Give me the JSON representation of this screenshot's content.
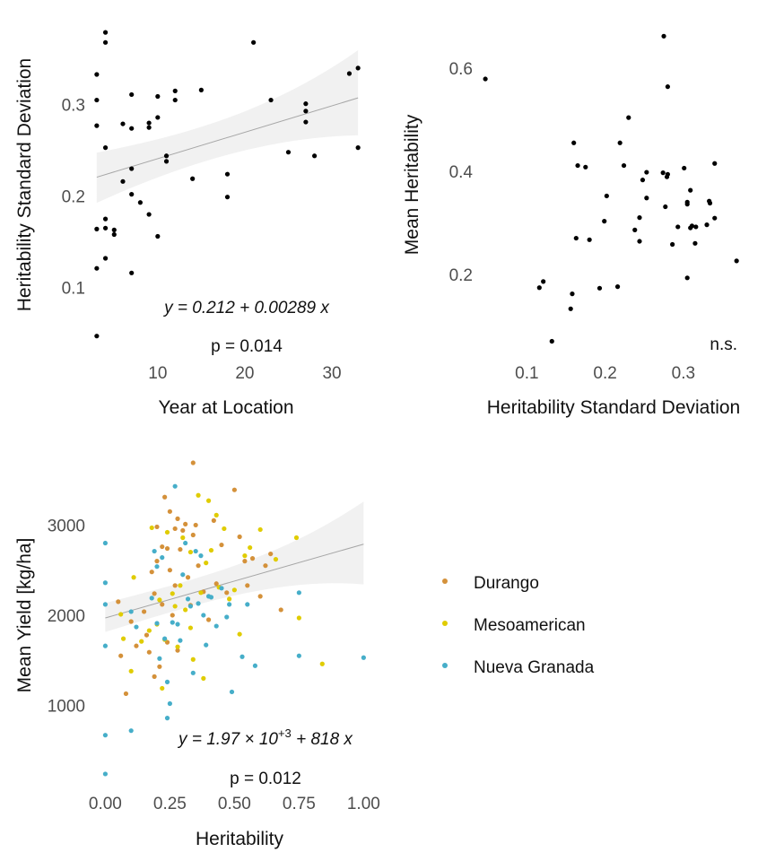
{
  "colors": {
    "point": "#000000",
    "band": "#ebebeb",
    "fit": "#a6a6a6",
    "Durango": "#d4913a",
    "Mesoamerican": "#e0cc00",
    "Nueva Granada": "#46aec9"
  },
  "chart_data": [
    {
      "id": "panel1",
      "type": "scatter",
      "xlabel": "Year  at Location",
      "ylabel": "Heritability Standard Deviation",
      "xlim": [
        2.5,
        33.5
      ],
      "ylim": [
        0.03,
        0.385
      ],
      "xticks": [
        10,
        20,
        30
      ],
      "xtick_labels": [
        "10",
        "20",
        "30"
      ],
      "yticks": [
        0.1,
        0.2,
        0.3
      ],
      "ytick_labels": [
        "0.1",
        "0.2",
        "0.3"
      ],
      "grid": false,
      "fit": {
        "intercept": 0.212,
        "slope": 0.00289,
        "ci_low": [
          0.19,
          0.27
        ],
        "ci_high": [
          0.25,
          0.355
        ]
      },
      "equation": "y = 0.212 + 0.00289 x",
      "p_value": "p = 0.014",
      "points": [
        [
          3,
          0.333
        ],
        [
          3,
          0.305
        ],
        [
          3,
          0.277
        ],
        [
          3,
          0.164
        ],
        [
          3,
          0.121
        ],
        [
          3,
          0.047
        ],
        [
          4,
          0.379
        ],
        [
          4,
          0.368
        ],
        [
          4,
          0.253
        ],
        [
          4,
          0.175
        ],
        [
          4,
          0.165
        ],
        [
          4,
          0.132
        ],
        [
          5,
          0.163
        ],
        [
          5,
          0.158
        ],
        [
          6,
          0.279
        ],
        [
          6,
          0.216
        ],
        [
          7,
          0.311
        ],
        [
          7,
          0.274
        ],
        [
          7,
          0.23
        ],
        [
          7,
          0.202
        ],
        [
          7,
          0.116
        ],
        [
          8,
          0.193
        ],
        [
          9,
          0.28
        ],
        [
          9,
          0.275
        ],
        [
          9,
          0.18
        ],
        [
          10,
          0.309
        ],
        [
          10,
          0.286
        ],
        [
          10,
          0.156
        ],
        [
          11,
          0.244
        ],
        [
          11,
          0.238
        ],
        [
          12,
          0.315
        ],
        [
          12,
          0.305
        ],
        [
          14,
          0.219
        ],
        [
          15,
          0.316
        ],
        [
          18,
          0.224
        ],
        [
          18,
          0.199
        ],
        [
          21,
          0.368
        ],
        [
          23,
          0.305
        ],
        [
          25,
          0.248
        ],
        [
          27,
          0.301
        ],
        [
          27,
          0.293
        ],
        [
          27,
          0.281
        ],
        [
          28,
          0.244
        ],
        [
          32,
          0.334
        ],
        [
          33,
          0.34
        ],
        [
          33,
          0.253
        ]
      ]
    },
    {
      "id": "panel2",
      "type": "scatter",
      "xlabel": "Heritability Standard Deviation",
      "ylabel": "Mean Heritability",
      "xlim": [
        0.04,
        0.385
      ],
      "ylim": [
        0.05,
        0.68
      ],
      "xticks": [
        0.1,
        0.2,
        0.3
      ],
      "xtick_labels": [
        "0.1",
        "0.2",
        "0.3"
      ],
      "yticks": [
        0.2,
        0.4,
        0.6
      ],
      "ytick_labels": [
        "0.2",
        "0.4",
        "0.6"
      ],
      "grid": false,
      "annotation": "n.s.",
      "points": [
        [
          0.047,
          0.579
        ],
        [
          0.116,
          0.174
        ],
        [
          0.121,
          0.186
        ],
        [
          0.132,
          0.07
        ],
        [
          0.156,
          0.133
        ],
        [
          0.158,
          0.162
        ],
        [
          0.16,
          0.455
        ],
        [
          0.163,
          0.27
        ],
        [
          0.165,
          0.411
        ],
        [
          0.175,
          0.408
        ],
        [
          0.18,
          0.267
        ],
        [
          0.193,
          0.173
        ],
        [
          0.199,
          0.303
        ],
        [
          0.202,
          0.352
        ],
        [
          0.216,
          0.176
        ],
        [
          0.219,
          0.455
        ],
        [
          0.224,
          0.411
        ],
        [
          0.23,
          0.504
        ],
        [
          0.238,
          0.286
        ],
        [
          0.244,
          0.31
        ],
        [
          0.244,
          0.264
        ],
        [
          0.248,
          0.383
        ],
        [
          0.253,
          0.348
        ],
        [
          0.253,
          0.398
        ],
        [
          0.274,
          0.397
        ],
        [
          0.275,
          0.662
        ],
        [
          0.277,
          0.331
        ],
        [
          0.279,
          0.389
        ],
        [
          0.28,
          0.394
        ],
        [
          0.28,
          0.564
        ],
        [
          0.286,
          0.258
        ],
        [
          0.293,
          0.292
        ],
        [
          0.301,
          0.406
        ],
        [
          0.305,
          0.34
        ],
        [
          0.305,
          0.336
        ],
        [
          0.305,
          0.193
        ],
        [
          0.309,
          0.363
        ],
        [
          0.309,
          0.29
        ],
        [
          0.311,
          0.294
        ],
        [
          0.315,
          0.26
        ],
        [
          0.316,
          0.292
        ],
        [
          0.33,
          0.296
        ],
        [
          0.333,
          0.342
        ],
        [
          0.334,
          0.338
        ],
        [
          0.34,
          0.415
        ],
        [
          0.34,
          0.309
        ],
        [
          0.368,
          0.226
        ]
      ]
    },
    {
      "id": "panel3",
      "type": "scatter",
      "xlabel": "Heritability",
      "ylabel": "Mean Yield [kg/ha]",
      "xlim": [
        -0.05,
        1.03
      ],
      "ylim": [
        150,
        3750
      ],
      "xticks": [
        0,
        0.25,
        0.5,
        0.75,
        1
      ],
      "xtick_labels": [
        "0.00",
        "0.25",
        "0.50",
        "0.75",
        "1.00"
      ],
      "yticks": [
        1000,
        2000,
        3000
      ],
      "ytick_labels": [
        "1000",
        "2000",
        "3000"
      ],
      "grid": false,
      "fit": {
        "intercept": 1970,
        "slope": 818,
        "ci_low": [
          1800,
          2380
        ],
        "ci_high": [
          2150,
          3220
        ]
      },
      "equation": "y = 1.97 × 10^+3 + 818 x",
      "eq_parts": {
        "pre": "y = 1.97 × 10",
        "sup": "+3",
        "post": " + 818 x"
      },
      "p_value": "p = 0.012",
      "legend": {
        "position": "right",
        "entries": [
          "Durango",
          "Mesoamerican",
          "Nueva Granada"
        ]
      },
      "series": [
        {
          "name": "Durango",
          "points": [
            [
              0.05,
              2150
            ],
            [
              0.06,
              1550
            ],
            [
              0.08,
              1130
            ],
            [
              0.1,
              1930
            ],
            [
              0.12,
              1660
            ],
            [
              0.15,
              2040
            ],
            [
              0.16,
              1780
            ],
            [
              0.17,
              1590
            ],
            [
              0.18,
              2480
            ],
            [
              0.19,
              2240
            ],
            [
              0.19,
              1320
            ],
            [
              0.2,
              2980
            ],
            [
              0.2,
              2600
            ],
            [
              0.21,
              1430
            ],
            [
              0.22,
              2760
            ],
            [
              0.22,
              2120
            ],
            [
              0.23,
              3310
            ],
            [
              0.24,
              2740
            ],
            [
              0.24,
              1700
            ],
            [
              0.25,
              3150
            ],
            [
              0.25,
              2500
            ],
            [
              0.26,
              2000
            ],
            [
              0.27,
              2960
            ],
            [
              0.27,
              2330
            ],
            [
              0.28,
              3070
            ],
            [
              0.28,
              1610
            ],
            [
              0.29,
              2730
            ],
            [
              0.3,
              2940
            ],
            [
              0.31,
              3010
            ],
            [
              0.32,
              2420
            ],
            [
              0.33,
              2110
            ],
            [
              0.34,
              3690
            ],
            [
              0.34,
              2890
            ],
            [
              0.35,
              3000
            ],
            [
              0.36,
              2550
            ],
            [
              0.38,
              2260
            ],
            [
              0.4,
              1950
            ],
            [
              0.42,
              3050
            ],
            [
              0.43,
              2350
            ],
            [
              0.45,
              2780
            ],
            [
              0.47,
              2250
            ],
            [
              0.5,
              3390
            ],
            [
              0.52,
              2870
            ],
            [
              0.54,
              2600
            ],
            [
              0.55,
              2330
            ],
            [
              0.57,
              2630
            ],
            [
              0.6,
              2210
            ],
            [
              0.62,
              2550
            ],
            [
              0.64,
              2680
            ],
            [
              0.68,
              2060
            ]
          ]
        },
        {
          "name": "Mesoamerican",
          "points": [
            [
              0.06,
              2010
            ],
            [
              0.07,
              1740
            ],
            [
              0.1,
              1380
            ],
            [
              0.11,
              2420
            ],
            [
              0.14,
              1710
            ],
            [
              0.17,
              1830
            ],
            [
              0.18,
              2970
            ],
            [
              0.2,
              1900
            ],
            [
              0.21,
              2170
            ],
            [
              0.22,
              1190
            ],
            [
              0.23,
              1730
            ],
            [
              0.24,
              2920
            ],
            [
              0.26,
              2240
            ],
            [
              0.27,
              2100
            ],
            [
              0.28,
              1650
            ],
            [
              0.29,
              2330
            ],
            [
              0.3,
              2860
            ],
            [
              0.31,
              2060
            ],
            [
              0.33,
              2700
            ],
            [
              0.33,
              1860
            ],
            [
              0.34,
              1510
            ],
            [
              0.36,
              3330
            ],
            [
              0.37,
              2250
            ],
            [
              0.38,
              1300
            ],
            [
              0.39,
              2580
            ],
            [
              0.4,
              3270
            ],
            [
              0.41,
              2720
            ],
            [
              0.43,
              3110
            ],
            [
              0.44,
              2310
            ],
            [
              0.46,
              2960
            ],
            [
              0.48,
              2180
            ],
            [
              0.5,
              2280
            ],
            [
              0.52,
              1790
            ],
            [
              0.54,
              2660
            ],
            [
              0.56,
              2750
            ],
            [
              0.6,
              2950
            ],
            [
              0.66,
              2620
            ],
            [
              0.74,
              2860
            ],
            [
              0.75,
              1970
            ],
            [
              0.84,
              1460
            ]
          ]
        },
        {
          "name": "Nueva Granada",
          "points": [
            [
              0.0,
              2800
            ],
            [
              0.0,
              2360
            ],
            [
              0.0,
              2120
            ],
            [
              0.0,
              1660
            ],
            [
              0.0,
              670
            ],
            [
              0.0,
              240
            ],
            [
              0.1,
              2040
            ],
            [
              0.1,
              720
            ],
            [
              0.12,
              1870
            ],
            [
              0.18,
              2190
            ],
            [
              0.19,
              2710
            ],
            [
              0.2,
              2540
            ],
            [
              0.2,
              1910
            ],
            [
              0.21,
              1520
            ],
            [
              0.22,
              2640
            ],
            [
              0.23,
              1740
            ],
            [
              0.24,
              1260
            ],
            [
              0.24,
              860
            ],
            [
              0.25,
              1020
            ],
            [
              0.26,
              1920
            ],
            [
              0.27,
              3430
            ],
            [
              0.28,
              1900
            ],
            [
              0.29,
              1720
            ],
            [
              0.3,
              2450
            ],
            [
              0.31,
              2800
            ],
            [
              0.32,
              2180
            ],
            [
              0.33,
              2100
            ],
            [
              0.34,
              1360
            ],
            [
              0.35,
              2710
            ],
            [
              0.36,
              2130
            ],
            [
              0.37,
              2660
            ],
            [
              0.38,
              2000
            ],
            [
              0.39,
              1670
            ],
            [
              0.4,
              2210
            ],
            [
              0.41,
              2200
            ],
            [
              0.43,
              1880
            ],
            [
              0.45,
              2300
            ],
            [
              0.47,
              1980
            ],
            [
              0.48,
              2120
            ],
            [
              0.49,
              1150
            ],
            [
              0.53,
              1540
            ],
            [
              0.55,
              2120
            ],
            [
              0.58,
              1440
            ],
            [
              0.75,
              2250
            ],
            [
              0.75,
              1550
            ],
            [
              1.0,
              1530
            ]
          ]
        }
      ]
    }
  ]
}
